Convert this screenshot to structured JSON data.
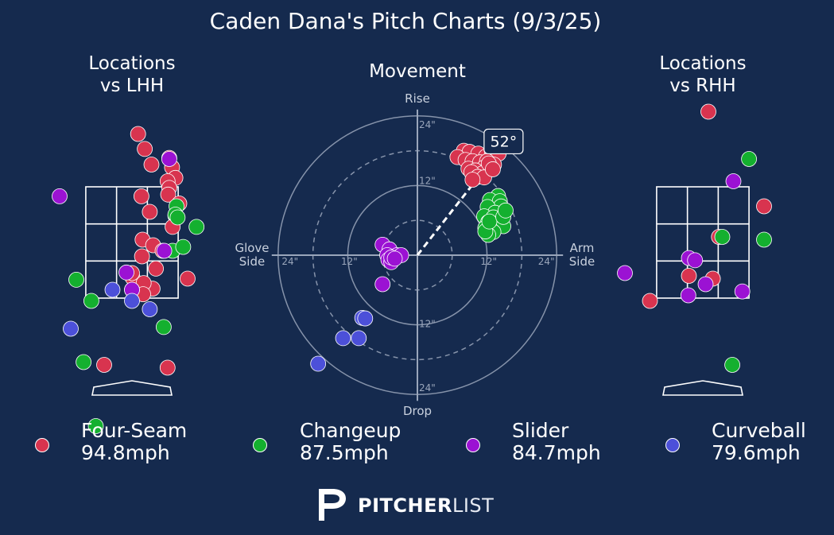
{
  "title": "Caden Dana's Pitch Charts (9/3/25)",
  "panels": {
    "lhh_title": "Locations\nvs LHH",
    "movement_title": "Movement",
    "rhh_title": "Locations\nvs RHH"
  },
  "colors": {
    "background": "#152a4e",
    "Four-Seam": "#d8344f",
    "Changeup": "#14b02f",
    "Slider": "#9b12d3",
    "Curveball": "#4c50d9"
  },
  "legend": [
    {
      "pitch": "Four-Seam",
      "velo": "94.8mph"
    },
    {
      "pitch": "Changeup",
      "velo": "87.5mph"
    },
    {
      "pitch": "Slider",
      "velo": "84.7mph"
    },
    {
      "pitch": "Curveball",
      "velo": "79.6mph"
    }
  ],
  "brand": {
    "bold": "PITCHER",
    "light": "LIST"
  },
  "chart_data": [
    {
      "type": "scatter",
      "title": "Locations vs LHH",
      "xlim": [
        -2.6,
        2.6
      ],
      "ylim": [
        -0.8,
        5.6
      ],
      "units": "ft",
      "strike_zone": {
        "x": [
          -0.83,
          0.83
        ],
        "y": [
          1.5,
          3.5
        ]
      },
      "series": [
        {
          "name": "Four-Seam",
          "points": [
            [
              0.11,
              4.45
            ],
            [
              0.35,
              3.9
            ],
            [
              0.23,
              4.18
            ],
            [
              0.67,
              4.02
            ],
            [
              0.72,
              3.85
            ],
            [
              0.78,
              3.66
            ],
            [
              0.64,
              3.6
            ],
            [
              0.67,
              3.48
            ],
            [
              0.65,
              3.36
            ],
            [
              0.17,
              3.33
            ],
            [
              0.32,
              3.05
            ],
            [
              0.85,
              3.2
            ],
            [
              0.78,
              2.98
            ],
            [
              0.73,
              2.78
            ],
            [
              0.19,
              2.55
            ],
            [
              0.38,
              2.45
            ],
            [
              0.55,
              2.35
            ],
            [
              0.18,
              2.25
            ],
            [
              0.43,
              2.03
            ],
            [
              0.37,
              1.67
            ],
            [
              0.01,
              1.87
            ],
            [
              0.21,
              1.77
            ],
            [
              0.2,
              1.57
            ],
            [
              0.0,
              1.65
            ],
            [
              0.0,
              1.95
            ],
            [
              1.0,
              1.85
            ],
            [
              -0.5,
              0.3
            ],
            [
              0.64,
              0.25
            ]
          ]
        },
        {
          "name": "Changeup",
          "points": [
            [
              -1.0,
              1.83
            ],
            [
              -0.73,
              1.45
            ],
            [
              0.8,
              3.15
            ],
            [
              0.78,
              3.0
            ],
            [
              0.82,
              2.95
            ],
            [
              1.16,
              2.78
            ],
            [
              0.73,
              2.35
            ],
            [
              0.92,
              2.42
            ],
            [
              0.57,
              0.98
            ],
            [
              -0.87,
              0.35
            ],
            [
              -0.65,
              -0.8
            ]
          ]
        },
        {
          "name": "Slider",
          "points": [
            [
              0.67,
              4.0
            ],
            [
              -1.3,
              3.33
            ],
            [
              0.58,
              2.35
            ],
            [
              -0.1,
              1.96
            ],
            [
              0.0,
              1.65
            ]
          ]
        },
        {
          "name": "Curveball",
          "points": [
            [
              -0.35,
              1.65
            ],
            [
              0.0,
              1.45
            ],
            [
              0.32,
              1.3
            ],
            [
              -1.1,
              0.95
            ]
          ]
        }
      ]
    },
    {
      "type": "scatter",
      "title": "Movement",
      "axes": {
        "top": "Rise",
        "bottom": "Drop",
        "left": "Glove\nSide",
        "right": "Arm\nSide"
      },
      "rings_in": [
        6,
        12,
        18,
        24
      ],
      "ring_labels": [
        "12\"",
        "24\"",
        "12\"",
        "24\"",
        "12\"",
        "24\"",
        "12\"",
        "24\""
      ],
      "arm_angle_label": "52°",
      "arm_angle_deg": 52,
      "units": "in",
      "series": [
        {
          "name": "Four-Seam",
          "points": [
            [
              8.0,
              18.0
            ],
            [
              9.0,
              17.8
            ],
            [
              10.5,
              17.5
            ],
            [
              11.8,
              17.0
            ],
            [
              12.8,
              17.2
            ],
            [
              14.0,
              17.5
            ],
            [
              6.9,
              16.9
            ],
            [
              8.3,
              16.4
            ],
            [
              9.5,
              16.2
            ],
            [
              10.8,
              16.0
            ],
            [
              12.0,
              16.2
            ],
            [
              13.2,
              15.6
            ],
            [
              11.5,
              15.1
            ],
            [
              8.8,
              14.9
            ],
            [
              10.0,
              14.6
            ],
            [
              11.2,
              14.1
            ],
            [
              9.3,
              14.3
            ],
            [
              10.4,
              13.5
            ],
            [
              11.5,
              13.4
            ],
            [
              12.3,
              15.8
            ],
            [
              13.0,
              14.8
            ],
            [
              9.5,
              13.0
            ]
          ]
        },
        {
          "name": "Changeup",
          "points": [
            [
              13.9,
              10.2
            ],
            [
              12.5,
              9.5
            ],
            [
              14.2,
              9.3
            ],
            [
              14.4,
              8.4
            ],
            [
              12.1,
              8.3
            ],
            [
              13.4,
              7.3
            ],
            [
              11.5,
              6.7
            ],
            [
              13.1,
              6.5
            ],
            [
              12.2,
              5.7
            ],
            [
              14.8,
              5.0
            ],
            [
              12.6,
              4.5
            ],
            [
              11.7,
              4.7
            ],
            [
              13.1,
              4.0
            ],
            [
              12.2,
              3.5
            ],
            [
              11.7,
              4.1
            ],
            [
              12.4,
              5.8
            ],
            [
              14.8,
              6.6
            ],
            [
              15.2,
              7.7
            ]
          ]
        },
        {
          "name": "Slider",
          "points": [
            [
              -6.0,
              1.8
            ],
            [
              -4.8,
              1.0
            ],
            [
              -3.5,
              0.0
            ],
            [
              -5.2,
              0.0
            ],
            [
              -2.8,
              0.0
            ],
            [
              -5.0,
              -0.8
            ],
            [
              -4.5,
              -1.2
            ],
            [
              -4.5,
              -0.4
            ],
            [
              -3.9,
              -0.6
            ],
            [
              -6.0,
              -5.0
            ]
          ]
        },
        {
          "name": "Curveball",
          "points": [
            [
              -9.5,
              -10.8
            ],
            [
              -9.0,
              -10.9
            ],
            [
              -12.8,
              -14.3
            ],
            [
              -10.1,
              -14.3
            ],
            [
              -17.1,
              -18.7
            ]
          ]
        }
      ]
    },
    {
      "type": "scatter",
      "title": "Locations vs RHH",
      "xlim": [
        -2.6,
        2.6
      ],
      "ylim": [
        -0.8,
        5.6
      ],
      "units": "ft",
      "strike_zone": {
        "x": [
          -0.83,
          0.83
        ],
        "y": [
          1.5,
          3.5
        ]
      },
      "series": [
        {
          "name": "Four-Seam",
          "points": [
            [
              0.1,
              4.85
            ],
            [
              1.1,
              3.15
            ],
            [
              0.29,
              2.6
            ],
            [
              -0.25,
              1.9
            ],
            [
              0.18,
              1.85
            ],
            [
              -0.95,
              1.45
            ]
          ]
        },
        {
          "name": "Changeup",
          "points": [
            [
              0.83,
              4.0
            ],
            [
              0.35,
              2.6
            ],
            [
              1.1,
              2.55
            ],
            [
              0.53,
              0.3
            ]
          ]
        },
        {
          "name": "Slider",
          "points": [
            [
              0.55,
              3.6
            ],
            [
              -0.25,
              2.22
            ],
            [
              -0.14,
              2.18
            ],
            [
              -1.4,
              1.95
            ],
            [
              0.05,
              1.75
            ],
            [
              -0.26,
              1.55
            ],
            [
              0.71,
              1.62
            ]
          ]
        },
        {
          "name": "Curveball",
          "points": []
        }
      ]
    }
  ]
}
